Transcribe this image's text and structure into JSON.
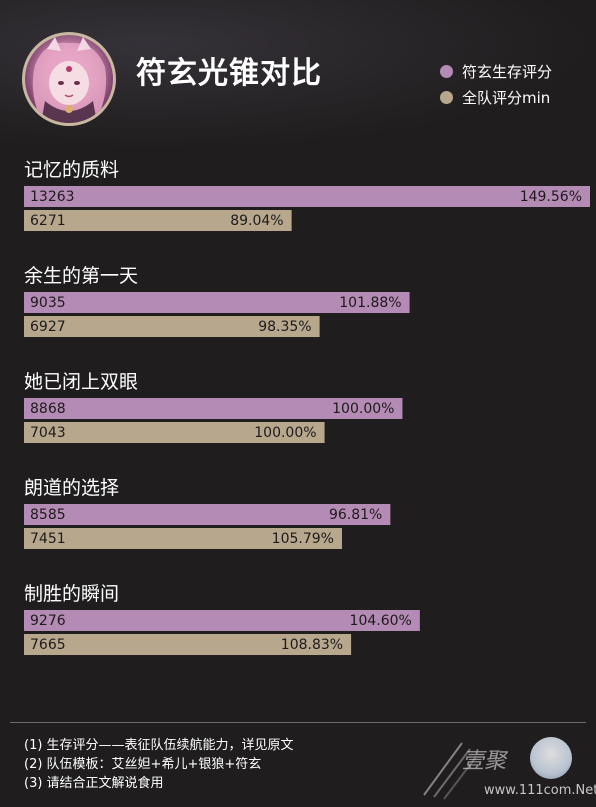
{
  "header": {
    "title": "符玄光锥对比"
  },
  "legend": [
    {
      "label": "符玄生存评分",
      "color": "#b48bb4"
    },
    {
      "label": "全队评分min",
      "color": "#b7a88d"
    }
  ],
  "colors": {
    "series_a": "#b48bb4",
    "series_b": "#b7a88d",
    "background": "#1f1d1d"
  },
  "chart_data": {
    "type": "bar",
    "orientation": "horizontal",
    "grid": false,
    "legend_position": "top-right",
    "categories": [
      "记忆的质料",
      "余生的第一天",
      "她已闭上双眼",
      "朗道的选择",
      "制胜的瞬间"
    ],
    "series": [
      {
        "name": "符玄生存评分",
        "values": [
          13263,
          9035,
          8868,
          8585,
          9276
        ],
        "percent_labels": [
          "149.56%",
          "101.88%",
          "100.00%",
          "96.81%",
          "104.60%"
        ]
      },
      {
        "name": "全队评分min",
        "values": [
          6271,
          6927,
          7043,
          7451,
          7665
        ],
        "percent_labels": [
          "89.04%",
          "98.35%",
          "100.00%",
          "105.79%",
          "108.83%"
        ]
      }
    ]
  },
  "footnotes": [
    "(1) 生存评分——表征队伍续航能力，详见原文",
    "(2) 队伍模板：艾丝妲+希儿+银狼+符玄",
    "(3) 请结合正文解说食用"
  ],
  "watermark": {
    "brand": "壹聚",
    "url": "www.111com.Net"
  }
}
